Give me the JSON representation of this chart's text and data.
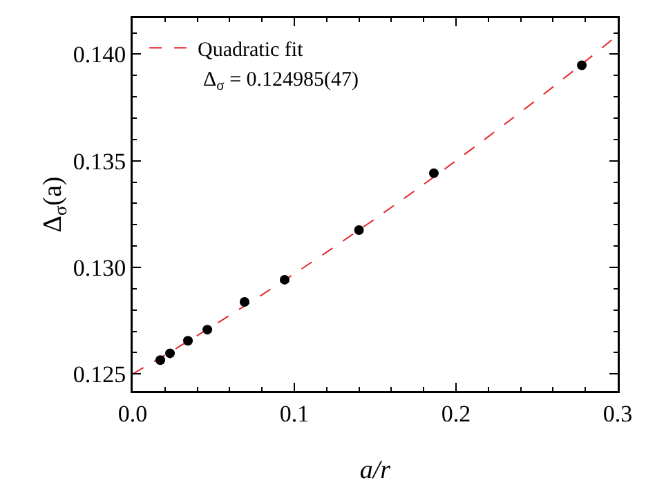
{
  "chart_data": {
    "type": "scatter",
    "xlabel": "a/r",
    "ylabel": "Δ$_{σ}$(a)",
    "xlim": [
      0,
      0.3
    ],
    "ylim": [
      0.1242,
      0.1417
    ],
    "xticks": [
      "0.0",
      0.1,
      0.2,
      0.3
    ],
    "yticks": [
      0.125,
      {
        "value": 0.13,
        "label": "0.130"
      },
      0.135,
      {
        "value": 0.14,
        "label": "0.140"
      }
    ],
    "grid": false,
    "legend": "top left",
    "annotations": [
      "Δ$_{σ}$ = 0.124985(47)"
    ],
    "series": [
      {
        "marker": "circle",
        "color": "#000000",
        "x": [
          0.0171,
          0.0231,
          0.0342,
          0.0462,
          0.0692,
          0.094,
          0.14,
          0.1863,
          0.2778
        ],
        "values": [
          0.12565,
          0.12597,
          0.12656,
          0.12708,
          0.12838,
          0.12942,
          0.13175,
          0.13442,
          0.13948
        ]
      },
      {
        "type": "line",
        "name": "Quadratic fit",
        "color": "#e8262a",
        "line_style": "dashed",
        "x": [
          0,
          0.025,
          0.05,
          0.075,
          0.1,
          0.125,
          0.15,
          0.175,
          0.2,
          0.225,
          0.25,
          0.275,
          0.3
        ],
        "values": [
          0.125,
          0.12611,
          0.12727,
          0.12847,
          0.1297,
          0.13097,
          0.13228,
          0.13362,
          0.135,
          0.13642,
          0.13787,
          0.13936,
          0.14089
        ]
      }
    ]
  }
}
